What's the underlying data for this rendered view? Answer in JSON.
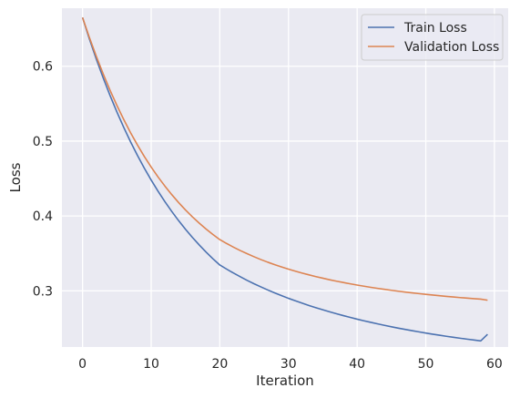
{
  "chart_data": {
    "type": "line",
    "xlabel": "Iteration",
    "ylabel": "Loss",
    "xlim": [
      -3,
      62
    ],
    "ylim": [
      0.225,
      0.6775
    ],
    "x_ticks": [
      0,
      10,
      20,
      30,
      40,
      50,
      60
    ],
    "y_ticks": [
      0.3,
      0.4,
      0.5,
      0.6
    ],
    "x_tick_labels": [
      "0",
      "10",
      "20",
      "30",
      "40",
      "50",
      "60"
    ],
    "y_tick_labels": [
      "0.3",
      "0.4",
      "0.5",
      "0.6"
    ],
    "grid": true,
    "legend_position": "top-right",
    "background": "#EAEAF2",
    "x": [
      0,
      1,
      2,
      3,
      4,
      5,
      6,
      7,
      8,
      9,
      10,
      11,
      12,
      13,
      14,
      15,
      16,
      17,
      18,
      19,
      20,
      21,
      22,
      23,
      24,
      25,
      26,
      27,
      28,
      29,
      30,
      31,
      32,
      33,
      34,
      35,
      36,
      37,
      38,
      39,
      40,
      41,
      42,
      43,
      44,
      45,
      46,
      47,
      48,
      49,
      50,
      51,
      52,
      53,
      54,
      55,
      56,
      57,
      58,
      59
    ],
    "series": [
      {
        "name": "Train Loss",
        "color": "#4C72B0",
        "values": [
          0.665,
          0.6365,
          0.6097,
          0.5846,
          0.5611,
          0.539,
          0.5184,
          0.499,
          0.4809,
          0.4639,
          0.448,
          0.4331,
          0.4191,
          0.406,
          0.3937,
          0.3822,
          0.3714,
          0.3613,
          0.3518,
          0.3428,
          0.3345,
          0.329,
          0.3237,
          0.3187,
          0.3139,
          0.3094,
          0.3052,
          0.3011,
          0.2972,
          0.2936,
          0.29,
          0.2867,
          0.2835,
          0.2804,
          0.2775,
          0.2747,
          0.272,
          0.2694,
          0.2669,
          0.2645,
          0.2622,
          0.26,
          0.2579,
          0.2559,
          0.2539,
          0.252,
          0.2502,
          0.2485,
          0.2468,
          0.2452,
          0.2436,
          0.2421,
          0.2407,
          0.2393,
          0.238,
          0.2367,
          0.2355,
          0.2343,
          0.2331,
          0.242
        ]
      },
      {
        "name": "Validation Loss",
        "color": "#DD8452",
        "values": [
          0.665,
          0.6384,
          0.6134,
          0.59,
          0.5681,
          0.5478,
          0.5289,
          0.5112,
          0.4948,
          0.4795,
          0.4653,
          0.4521,
          0.4399,
          0.4285,
          0.4179,
          0.408,
          0.3989,
          0.3904,
          0.3825,
          0.3752,
          0.3684,
          0.3632,
          0.3583,
          0.3537,
          0.3495,
          0.3455,
          0.3417,
          0.3382,
          0.335,
          0.3319,
          0.329,
          0.3263,
          0.3237,
          0.3213,
          0.319,
          0.3169,
          0.3148,
          0.3129,
          0.3111,
          0.3094,
          0.3077,
          0.3062,
          0.3047,
          0.3033,
          0.302,
          0.3007,
          0.2995,
          0.2984,
          0.2973,
          0.2963,
          0.2953,
          0.2944,
          0.2935,
          0.2926,
          0.2918,
          0.291,
          0.2903,
          0.2896,
          0.2889,
          0.2875
        ]
      }
    ]
  }
}
